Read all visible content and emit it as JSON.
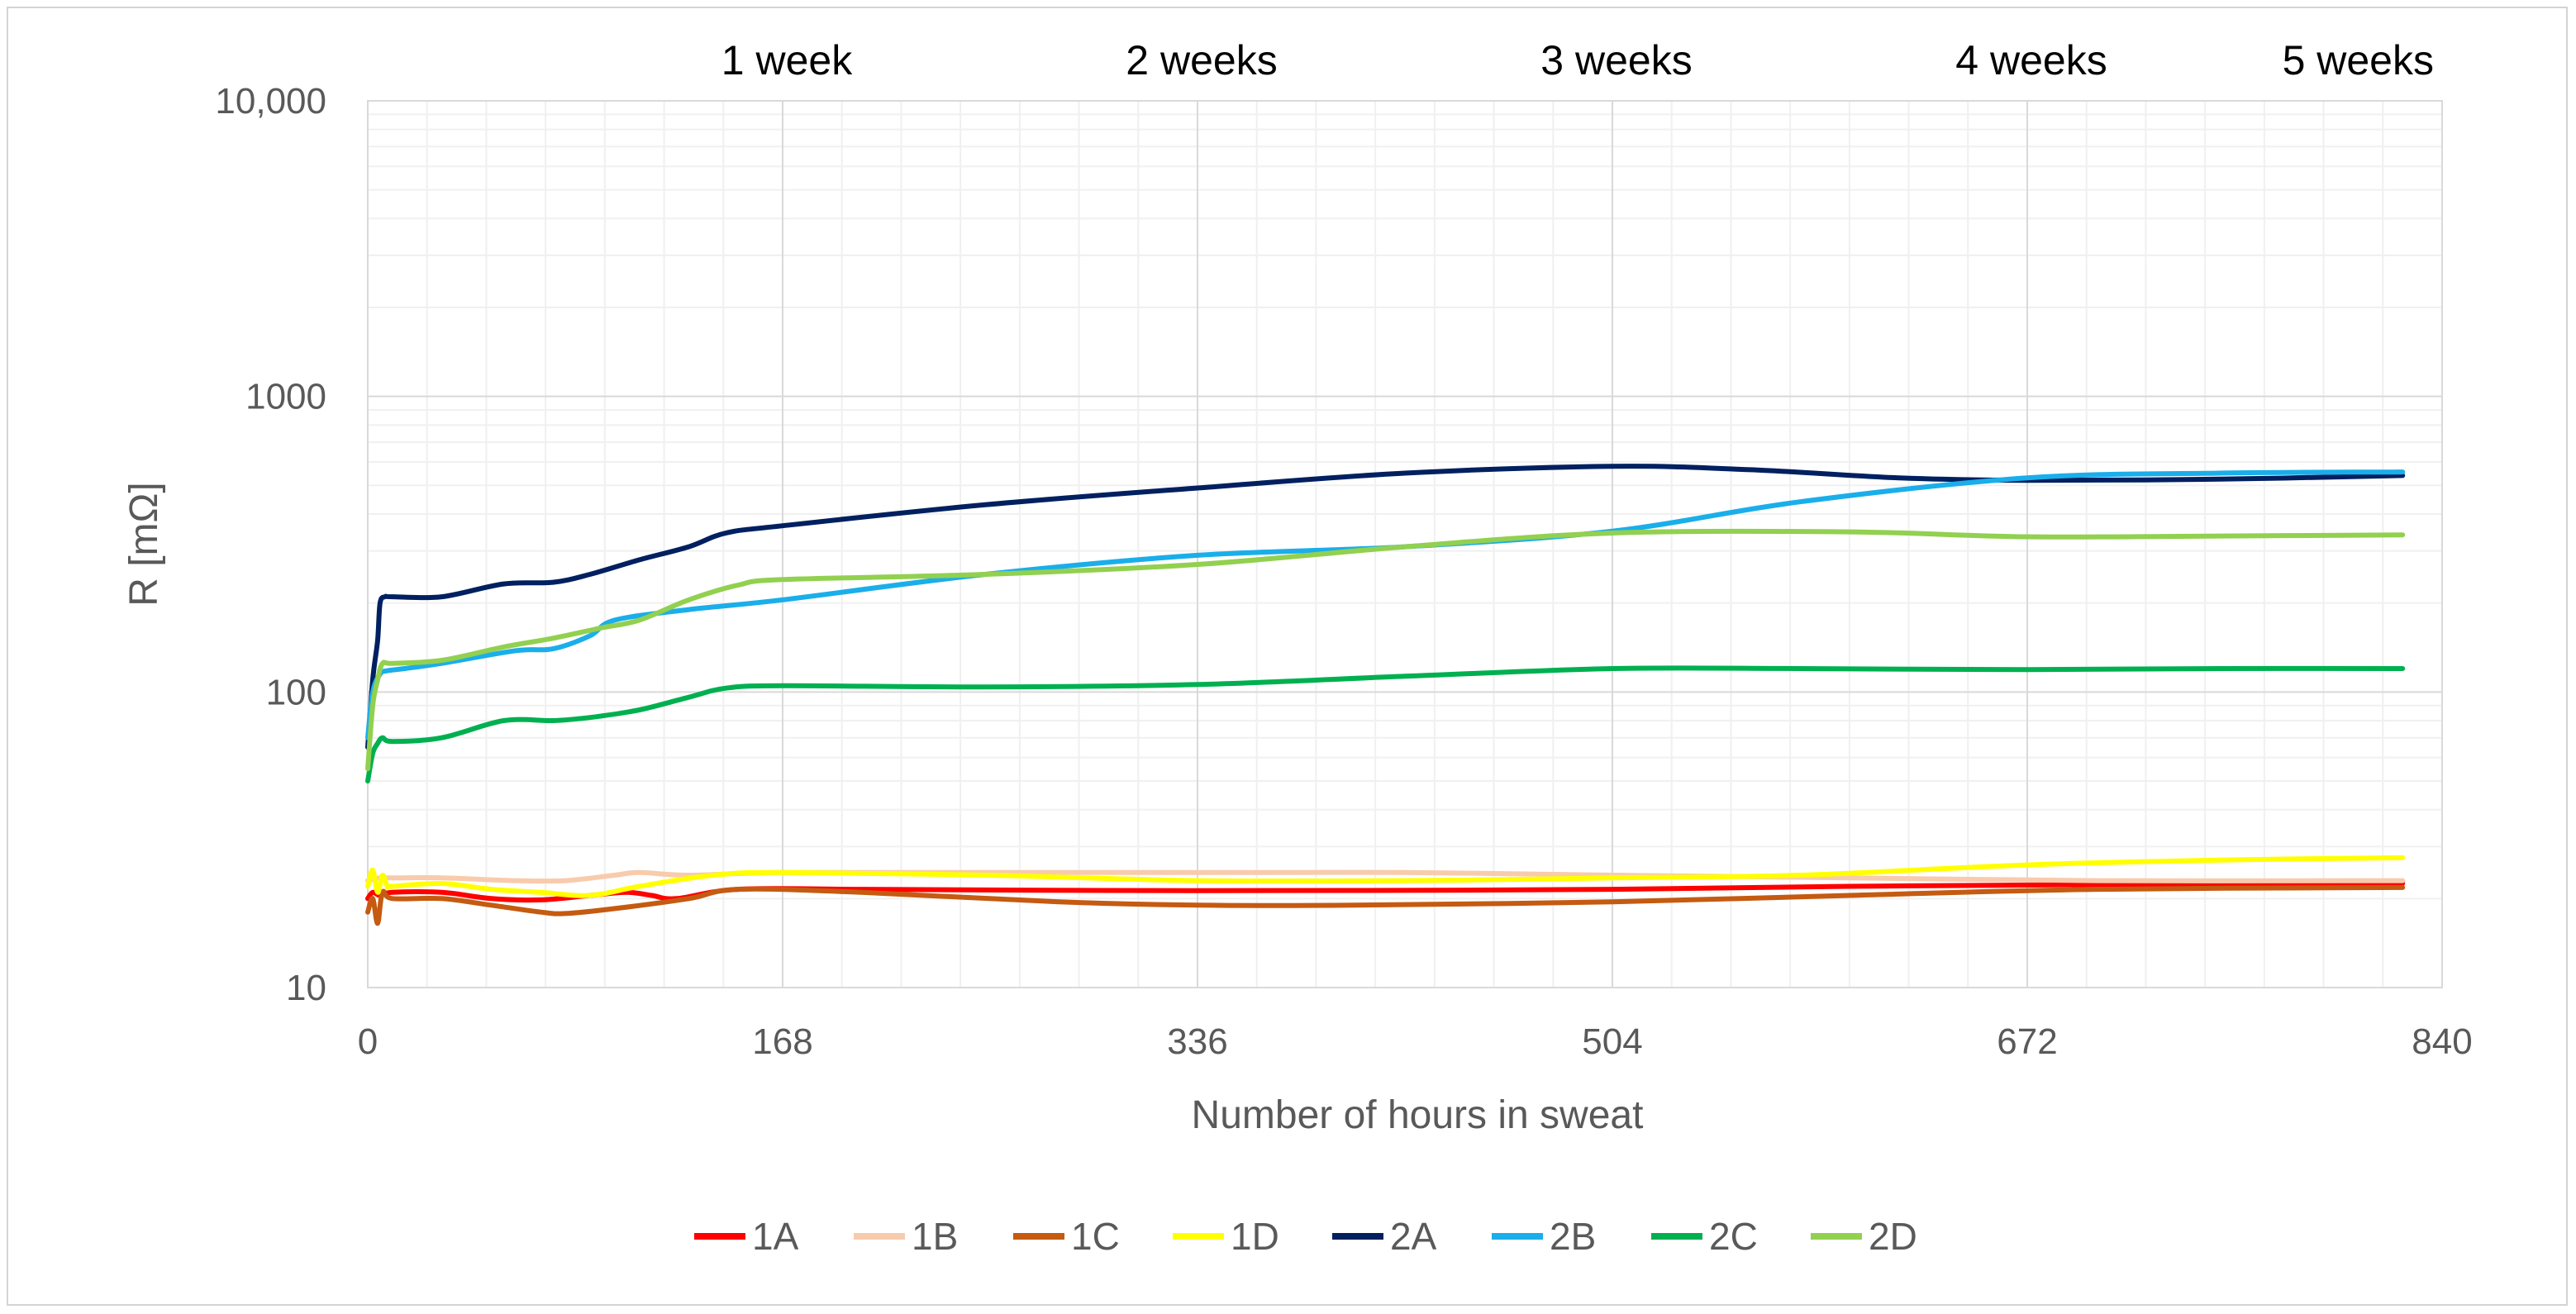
{
  "chart_data": {
    "type": "line",
    "title": "",
    "xlabel": "Number of hours in sweat",
    "ylabel": "R [mΩ]",
    "yscale": "log",
    "xlim": [
      0,
      840
    ],
    "ylim": [
      10,
      10000
    ],
    "x_ticks": [
      0,
      168,
      336,
      504,
      672,
      840
    ],
    "y_ticks": [
      10,
      100,
      1000,
      10000
    ],
    "y_tick_labels": [
      "10",
      "100",
      "1000",
      "10,000"
    ],
    "grid": true,
    "top_annotations": [
      {
        "x": 168,
        "label": "1 week"
      },
      {
        "x": 336,
        "label": "2 weeks"
      },
      {
        "x": 504,
        "label": "3 weeks"
      },
      {
        "x": 672,
        "label": "4 weeks"
      },
      {
        "x": 840,
        "label": "5 weeks"
      }
    ],
    "legend_position": "bottom",
    "series": [
      {
        "name": "1A",
        "color": "#ff0000",
        "x": [
          0,
          2,
          5,
          10,
          30,
          50,
          70,
          90,
          105,
          115,
          125,
          150,
          200,
          300,
          400,
          504,
          600,
          700,
          824
        ],
        "y": [
          20,
          21,
          20.5,
          21,
          21,
          20,
          19.8,
          20.5,
          21,
          20.5,
          20,
          21.5,
          21.5,
          21.3,
          21.3,
          21.5,
          22,
          22.3,
          22.5
        ]
      },
      {
        "name": "1B",
        "color": "#f8cbad",
        "x": [
          0,
          5,
          10,
          30,
          60,
          80,
          100,
          110,
          130,
          168,
          250,
          336,
          420,
          504,
          600,
          700,
          824
        ],
        "y": [
          23,
          23.5,
          23.5,
          23.5,
          23,
          23,
          24,
          24.5,
          24,
          24.5,
          24.5,
          24.5,
          24.5,
          24,
          23.5,
          23,
          23
        ]
      },
      {
        "name": "1C",
        "color": "#c55a11",
        "x": [
          0,
          2,
          4,
          6,
          10,
          30,
          50,
          70,
          80,
          100,
          130,
          150,
          200,
          280,
          336,
          400,
          504,
          600,
          700,
          824
        ],
        "y": [
          18,
          20,
          16.5,
          21,
          20,
          20,
          19,
          18,
          17.8,
          18.5,
          20,
          21.5,
          21,
          19.5,
          19,
          19,
          19.5,
          20.5,
          21.5,
          21.8
        ]
      },
      {
        "name": "1D",
        "color": "#ffff00",
        "x": [
          0,
          2,
          4,
          6,
          8,
          10,
          30,
          50,
          70,
          90,
          110,
          140,
          168,
          250,
          336,
          420,
          504,
          580,
          672,
          750,
          824
        ],
        "y": [
          22,
          25,
          21,
          24,
          22,
          22,
          22.5,
          21.5,
          21,
          20.5,
          22,
          24,
          24.5,
          24,
          23,
          23,
          23.5,
          24,
          26,
          27,
          27.5
        ]
      },
      {
        "name": "2A",
        "color": "#002060",
        "x": [
          0,
          2,
          4,
          5,
          7,
          10,
          30,
          55,
          75,
          90,
          110,
          130,
          145,
          168,
          250,
          336,
          420,
          504,
          560,
          620,
          672,
          750,
          824
        ],
        "y": [
          65,
          110,
          150,
          200,
          210,
          210,
          210,
          232,
          235,
          250,
          280,
          310,
          345,
          365,
          430,
          490,
          550,
          580,
          565,
          530,
          520,
          525,
          540
        ]
      },
      {
        "name": "2B",
        "color": "#1aaeea",
        "x": [
          0,
          2,
          5,
          8,
          15,
          30,
          60,
          75,
          90,
          100,
          130,
          168,
          250,
          336,
          420,
          504,
          580,
          672,
          750,
          824
        ],
        "y": [
          70,
          100,
          115,
          118,
          120,
          125,
          138,
          140,
          155,
          175,
          190,
          205,
          250,
          290,
          310,
          350,
          440,
          530,
          550,
          555
        ]
      },
      {
        "name": "2C",
        "color": "#00b050",
        "x": [
          0,
          2,
          4,
          6,
          10,
          30,
          55,
          75,
          90,
          110,
          130,
          145,
          168,
          250,
          336,
          420,
          504,
          580,
          672,
          750,
          824
        ],
        "y": [
          50,
          62,
          67,
          70,
          68,
          70,
          80,
          80,
          82,
          87,
          96,
          103,
          105,
          104,
          106,
          113,
          120,
          120,
          119,
          120,
          120
        ]
      },
      {
        "name": "2D",
        "color": "#92d050",
        "x": [
          0,
          2,
          4,
          6,
          10,
          30,
          55,
          75,
          95,
          110,
          130,
          150,
          168,
          250,
          336,
          420,
          504,
          600,
          672,
          750,
          824
        ],
        "y": [
          55,
          90,
          110,
          125,
          125,
          128,
          142,
          152,
          165,
          175,
          205,
          230,
          240,
          250,
          270,
          310,
          345,
          348,
          335,
          337,
          340
        ]
      }
    ]
  }
}
